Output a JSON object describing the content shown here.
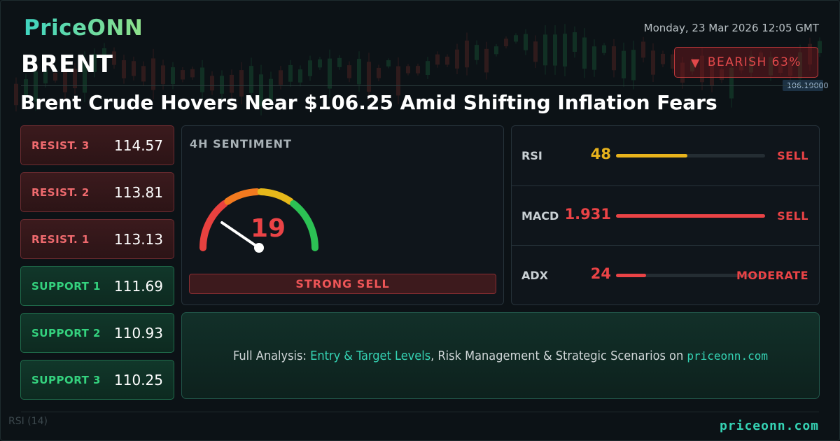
{
  "brand": {
    "logo_text": "PriceONN"
  },
  "asset": {
    "ticker": "BRENT"
  },
  "datetime": "Monday, 23 Mar 2026 12:05 GMT",
  "bias": {
    "icon": "triangle-down-icon",
    "label": "BEARISH 63%",
    "color": "#e0484a"
  },
  "headline": "Brent Crude Hovers Near $106.25 Amid Shifting Inflation Fears",
  "levels": [
    {
      "label": "RESIST. 3",
      "value": "114.57",
      "kind": "resistance"
    },
    {
      "label": "RESIST. 2",
      "value": "113.81",
      "kind": "resistance"
    },
    {
      "label": "RESIST. 1",
      "value": "113.13",
      "kind": "resistance"
    },
    {
      "label": "SUPPORT 1",
      "value": "111.69",
      "kind": "support"
    },
    {
      "label": "SUPPORT 2",
      "value": "110.93",
      "kind": "support"
    },
    {
      "label": "SUPPORT 3",
      "value": "110.25",
      "kind": "support"
    }
  ],
  "sentiment": {
    "title": "4H SENTIMENT",
    "score": "19",
    "score_max": 100,
    "signal": "STRONG SELL"
  },
  "indicators": [
    {
      "name": "RSI",
      "value": "48",
      "level": 0.48,
      "signal": "SELL",
      "value_color": "#e8b31c",
      "bar_color": "#e8b31c",
      "signal_color": "#ea4346"
    },
    {
      "name": "MACD",
      "value": "1.931",
      "level": 1.0,
      "signal": "SELL",
      "value_color": "#ea4346",
      "bar_color": "#ea4346",
      "signal_color": "#ea4346"
    },
    {
      "name": "ADX",
      "value": "24",
      "level": 0.2,
      "signal": "MODERATE",
      "value_color": "#ea4346",
      "bar_color": "#ea4346",
      "signal_color": "#ea4346"
    }
  ],
  "cta": {
    "prefix": "Full Analysis: ",
    "highlight": "Entry & Target Levels",
    "middle": ", Risk Management & Strategic Scenarios on ",
    "site": "priceonn.com"
  },
  "footer": {
    "site": "priceonn.com"
  },
  "background": {
    "price_tag": "106.19000",
    "rsi_label": "RSI",
    "rsi_period": "(14)"
  },
  "colors": {
    "accent": "#35d3b4",
    "bearish": "#ea4346",
    "bullish": "#34d27e",
    "neutral": "#e8b31c"
  }
}
